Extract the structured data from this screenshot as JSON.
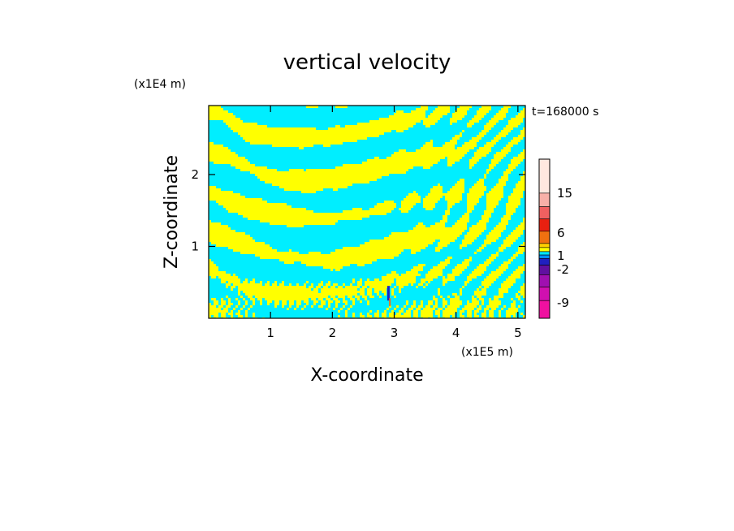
{
  "chart_data": {
    "type": "heatmap",
    "title": "vertical velocity",
    "xlabel": "X-coordinate",
    "ylabel": "Z-coordinate",
    "x_scale_label": "(x1E5 m)",
    "y_scale_label": "(x1E4 m)",
    "time_label": "t=168000 s",
    "xlim": [
      0,
      5.12
    ],
    "ylim": [
      0,
      2.96
    ],
    "x_ticks": [
      "1",
      "2",
      "3",
      "4",
      "5"
    ],
    "y_ticks": [
      "1",
      "2"
    ],
    "field_description": "banded field of alternating weak updraft (yellow) and weak downdraft (cyan) tilted wave-like stripes, with small localized extremes near x=2.9",
    "colorbar": {
      "tick_labels": [
        "15",
        "6",
        "1",
        "-2",
        "-9"
      ],
      "levels_top_to_bottom": [
        {
          "color": "#ffe8e0"
        },
        {
          "color": "#f8b0a8"
        },
        {
          "color": "#f06060"
        },
        {
          "color": "#e82010"
        },
        {
          "color": "#f07010"
        },
        {
          "color": "#ffd000"
        },
        {
          "color": "#ffff00"
        },
        {
          "color": "#00e8ff"
        },
        {
          "color": "#0090ff"
        },
        {
          "color": "#2020c0"
        },
        {
          "color": "#6010a0"
        },
        {
          "color": "#a010b0"
        },
        {
          "color": "#d010b0"
        },
        {
          "color": "#f010a0"
        }
      ]
    },
    "field_colors": {
      "up": "#ffff00",
      "down": "#00eeff"
    }
  }
}
